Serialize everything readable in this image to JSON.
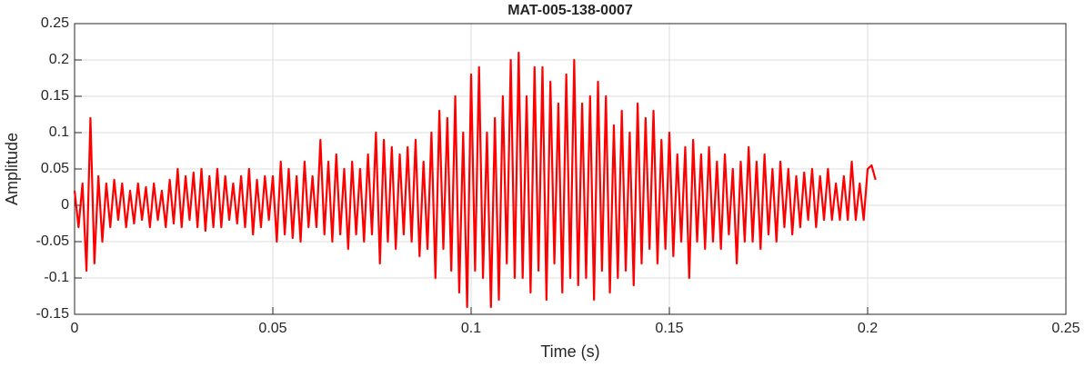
{
  "chart_data": {
    "type": "line",
    "title": "MAT-005-138-0007",
    "xlabel": "Time (s)",
    "ylabel": "Amplitude",
    "xlim": [
      0,
      0.25
    ],
    "xticks": [
      0,
      0.05,
      0.1,
      0.15,
      0.2,
      0.25
    ],
    "ylim": [
      -0.15,
      0.25
    ],
    "yticks": [
      -0.15,
      -0.1,
      -0.05,
      0,
      0.05,
      0.1,
      0.15,
      0.2,
      0.25
    ],
    "grid": true,
    "series": [
      {
        "color": "#ff0000",
        "x": [
          0,
          0.001,
          0.002,
          0.003,
          0.004,
          0.005,
          0.006,
          0.007,
          0.008,
          0.009,
          0.01,
          0.011,
          0.012,
          0.013,
          0.014,
          0.015,
          0.016,
          0.017,
          0.018,
          0.019,
          0.02,
          0.021,
          0.022,
          0.023,
          0.024,
          0.025,
          0.026,
          0.027,
          0.028,
          0.029,
          0.03,
          0.031,
          0.032,
          0.033,
          0.034,
          0.035,
          0.036,
          0.037,
          0.038,
          0.039,
          0.04,
          0.041,
          0.042,
          0.043,
          0.044,
          0.045,
          0.046,
          0.047,
          0.048,
          0.049,
          0.05,
          0.051,
          0.052,
          0.053,
          0.054,
          0.055,
          0.056,
          0.057,
          0.058,
          0.059,
          0.06,
          0.061,
          0.062,
          0.063,
          0.064,
          0.065,
          0.066,
          0.067,
          0.068,
          0.069,
          0.07,
          0.071,
          0.072,
          0.073,
          0.074,
          0.075,
          0.076,
          0.077,
          0.078,
          0.079,
          0.08,
          0.081,
          0.082,
          0.083,
          0.084,
          0.085,
          0.086,
          0.087,
          0.088,
          0.089,
          0.09,
          0.091,
          0.092,
          0.093,
          0.094,
          0.095,
          0.096,
          0.097,
          0.098,
          0.099,
          0.1,
          0.101,
          0.102,
          0.103,
          0.104,
          0.105,
          0.106,
          0.107,
          0.108,
          0.109,
          0.11,
          0.111,
          0.112,
          0.113,
          0.114,
          0.115,
          0.116,
          0.117,
          0.118,
          0.119,
          0.12,
          0.121,
          0.122,
          0.123,
          0.124,
          0.125,
          0.126,
          0.127,
          0.128,
          0.129,
          0.13,
          0.131,
          0.132,
          0.133,
          0.134,
          0.135,
          0.136,
          0.137,
          0.138,
          0.139,
          0.14,
          0.141,
          0.142,
          0.143,
          0.144,
          0.145,
          0.146,
          0.147,
          0.148,
          0.149,
          0.15,
          0.151,
          0.152,
          0.153,
          0.154,
          0.155,
          0.156,
          0.157,
          0.158,
          0.159,
          0.16,
          0.161,
          0.162,
          0.163,
          0.164,
          0.165,
          0.166,
          0.167,
          0.168,
          0.169,
          0.17,
          0.171,
          0.172,
          0.173,
          0.174,
          0.175,
          0.176,
          0.177,
          0.178,
          0.179,
          0.18,
          0.181,
          0.182,
          0.183,
          0.184,
          0.185,
          0.186,
          0.187,
          0.188,
          0.189,
          0.19,
          0.191,
          0.192,
          0.193,
          0.194,
          0.195,
          0.196,
          0.197,
          0.198,
          0.199,
          0.2,
          0.201,
          0.202
        ],
        "values": [
          0.02,
          -0.03,
          0.03,
          -0.09,
          0.12,
          -0.08,
          0.04,
          -0.05,
          0.03,
          -0.03,
          0.035,
          -0.02,
          0.03,
          -0.03,
          0.02,
          -0.025,
          0.03,
          -0.02,
          0.025,
          -0.03,
          0.03,
          -0.02,
          0.02,
          -0.03,
          0.035,
          -0.025,
          0.05,
          -0.03,
          0.04,
          -0.02,
          0.045,
          -0.03,
          0.05,
          -0.035,
          0.04,
          -0.03,
          0.05,
          -0.03,
          0.04,
          -0.02,
          0.03,
          -0.025,
          0.04,
          -0.03,
          0.05,
          -0.04,
          0.035,
          -0.03,
          0.04,
          -0.02,
          0.04,
          -0.05,
          0.06,
          -0.04,
          0.05,
          -0.045,
          0.04,
          -0.05,
          0.06,
          -0.03,
          0.04,
          -0.03,
          0.09,
          -0.04,
          0.06,
          -0.05,
          0.07,
          -0.04,
          0.05,
          -0.06,
          0.06,
          -0.04,
          0.05,
          -0.05,
          0.07,
          -0.04,
          0.1,
          -0.08,
          0.09,
          -0.05,
          0.08,
          -0.06,
          0.07,
          -0.04,
          0.08,
          -0.05,
          0.09,
          -0.07,
          0.06,
          -0.06,
          0.1,
          -0.1,
          0.13,
          -0.06,
          0.12,
          -0.09,
          0.15,
          -0.12,
          0.1,
          -0.14,
          0.18,
          -0.09,
          0.19,
          -0.1,
          0.1,
          -0.14,
          0.12,
          -0.13,
          0.15,
          -0.08,
          0.2,
          -0.1,
          0.21,
          -0.1,
          0.15,
          -0.12,
          0.19,
          -0.09,
          0.19,
          -0.13,
          0.17,
          -0.08,
          0.14,
          -0.12,
          0.18,
          -0.1,
          0.2,
          -0.11,
          0.14,
          -0.1,
          0.15,
          -0.13,
          0.17,
          -0.09,
          0.15,
          -0.12,
          0.11,
          -0.1,
          0.13,
          -0.09,
          0.1,
          -0.11,
          0.14,
          -0.08,
          0.12,
          -0.06,
          0.13,
          -0.08,
          0.09,
          -0.06,
          0.1,
          -0.07,
          0.07,
          -0.05,
          0.08,
          -0.1,
          0.09,
          -0.05,
          0.07,
          -0.06,
          0.08,
          -0.05,
          0.06,
          -0.06,
          0.07,
          -0.04,
          0.05,
          -0.08,
          0.06,
          -0.05,
          0.08,
          -0.05,
          0.06,
          -0.06,
          0.07,
          -0.04,
          0.05,
          -0.05,
          0.06,
          -0.03,
          0.05,
          -0.04,
          0.04,
          -0.03,
          0.045,
          -0.02,
          0.05,
          -0.03,
          0.04,
          -0.02,
          0.05,
          -0.02,
          0.03,
          -0.02,
          0.04,
          -0.02,
          0.06,
          -0.02,
          0.03,
          -0.02,
          0.05,
          0.055,
          0.035
        ]
      }
    ]
  }
}
